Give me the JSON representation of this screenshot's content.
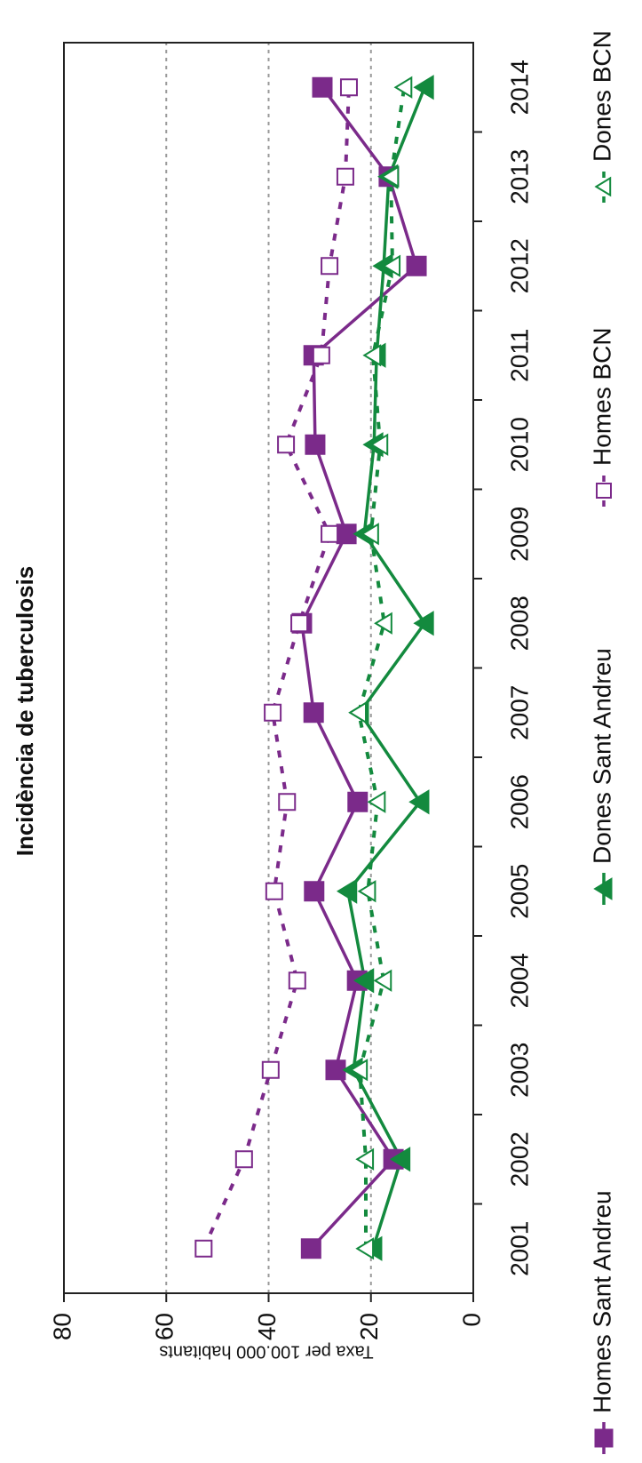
{
  "chart_data": {
    "type": "line",
    "title": "Incidència de tuberculosis",
    "y_label": "Taxa per 100.000 habitants",
    "categories": [
      "2001",
      "2002",
      "2003",
      "2004",
      "2005",
      "2006",
      "2007",
      "2008",
      "2009",
      "2010",
      "2011",
      "2012",
      "2013",
      "2014"
    ],
    "ylim": [
      0,
      80
    ],
    "yticks": [
      0,
      20,
      40,
      60,
      80
    ],
    "grid": true,
    "series": [
      {
        "name": "Homes Sant Andreu",
        "color": "#7b2a8a",
        "marker": "square",
        "filled": true,
        "dashed": false,
        "values": [
          31.7,
          15.6,
          26.9,
          22.7,
          31.1,
          22.6,
          31.2,
          33.5,
          24.8,
          30.9,
          31.2,
          11.1,
          16.5,
          29.5
        ]
      },
      {
        "name": "Dones Sant Andreu",
        "color": "#138a3e",
        "marker": "triangle",
        "filled": true,
        "dashed": false,
        "values": [
          19.6,
          14.1,
          23.4,
          21.2,
          24.5,
          10.4,
          22.2,
          9.5,
          21.3,
          19.4,
          18.9,
          17.5,
          16.5,
          9.5
        ]
      },
      {
        "name": "Homes BCN",
        "color": "#7b2a8a",
        "marker": "square",
        "filled": false,
        "dashed": true,
        "values": [
          52.7,
          44.8,
          39.6,
          34.4,
          38.9,
          36.4,
          39.2,
          34.0,
          28.1,
          36.6,
          29.7,
          28.1,
          25.0,
          24.3
        ]
      },
      {
        "name": "Dones BCN",
        "color": "#138a3e",
        "marker": "triangle",
        "filled": false,
        "dashed": true,
        "values": [
          21.0,
          21.0,
          22.2,
          17.5,
          20.6,
          18.7,
          22.4,
          17.4,
          20.0,
          18.2,
          19.6,
          15.8,
          16.1,
          13.5
        ]
      }
    ]
  }
}
